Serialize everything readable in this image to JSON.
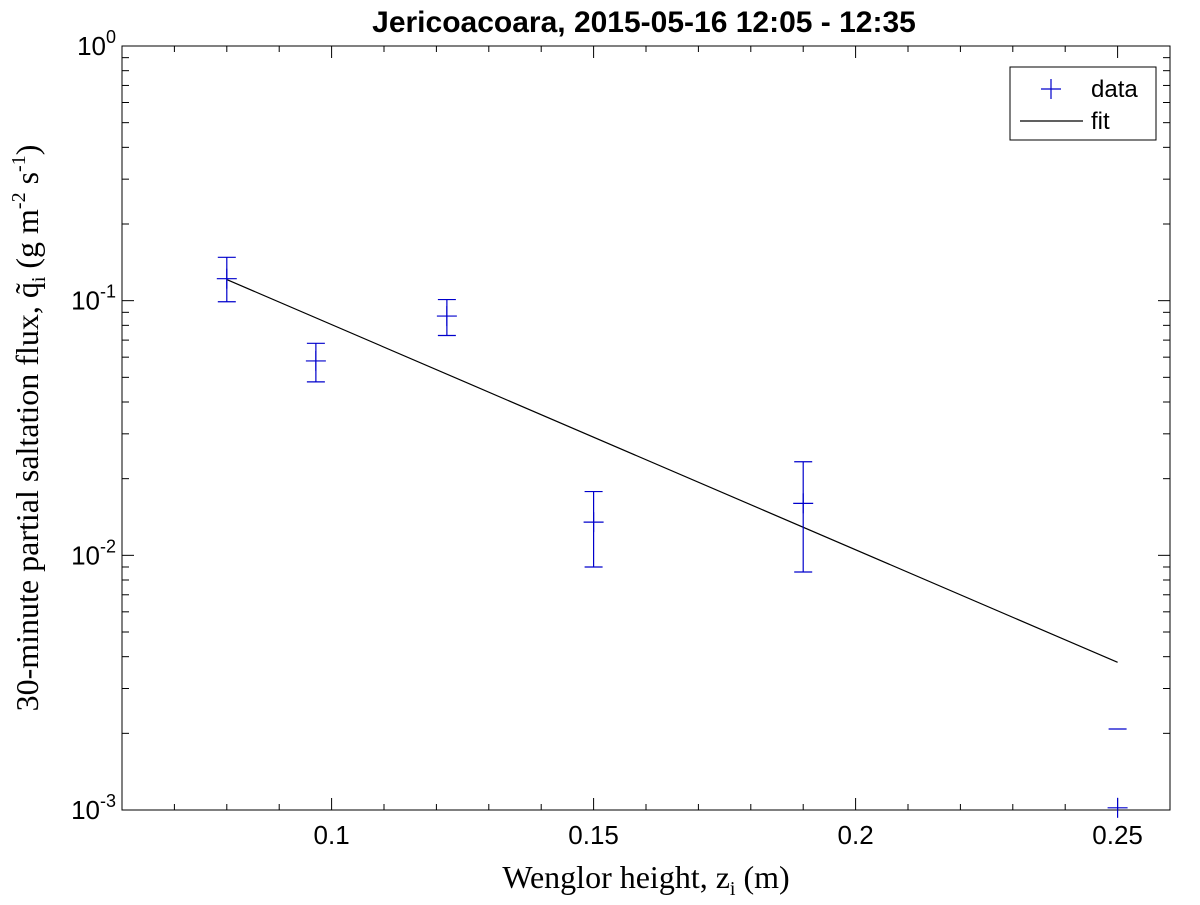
{
  "chart_data": {
    "type": "scatter",
    "title": "Jericoacoara, 2015-05-16 12:05 - 12:35",
    "xlabel": "Wenglor height, z_i (m)",
    "ylabel": "30-minute partial saltation flux, q̃_i (g m^-2 s^-1)",
    "xlim": [
      0.06,
      0.26
    ],
    "ylim": [
      0.001,
      1
    ],
    "yscale": "log",
    "grid": false,
    "legend_position": "top-right",
    "x_ticks": [
      0.1,
      0.15,
      0.2,
      0.25
    ],
    "x_tick_labels": [
      "0.1",
      "0.15",
      "0.2",
      "0.25"
    ],
    "y_ticks": [
      0.001,
      0.01,
      0.1,
      1
    ],
    "y_tick_labels": [
      {
        "base": "10",
        "exp": "-3"
      },
      {
        "base": "10",
        "exp": "-2"
      },
      {
        "base": "10",
        "exp": "-1"
      },
      {
        "base": "10",
        "exp": "0"
      }
    ],
    "series": [
      {
        "name": "data",
        "marker": "+",
        "color": "#0000cc",
        "points": [
          {
            "x": 0.08,
            "y": 0.122,
            "err_low": 0.099,
            "err_high": 0.148
          },
          {
            "x": 0.097,
            "y": 0.058,
            "err_low": 0.048,
            "err_high": 0.068
          },
          {
            "x": 0.122,
            "y": 0.087,
            "err_low": 0.073,
            "err_high": 0.101
          },
          {
            "x": 0.15,
            "y": 0.0135,
            "err_low": 0.009,
            "err_high": 0.0178
          },
          {
            "x": 0.19,
            "y": 0.016,
            "err_low": 0.0086,
            "err_high": 0.0233
          },
          {
            "x": 0.25,
            "y": 0.00102,
            "err_low": null,
            "err_high": 0.00208
          }
        ]
      },
      {
        "name": "fit",
        "line": "solid",
        "color": "#000000",
        "x": [
          0.08,
          0.25
        ],
        "y": [
          0.121,
          0.0038
        ]
      }
    ]
  }
}
